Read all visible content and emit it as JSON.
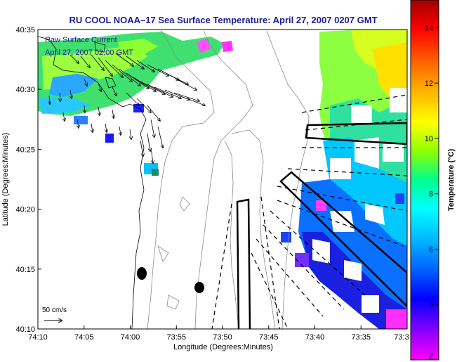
{
  "chart_data": {
    "type": "heatmap",
    "title": "RU COOL  NOAA–17  Sea Surface Temperature:  April 27, 2007 0207 GMT",
    "xlabel": "Longitude (Degrees:Minutes)",
    "ylabel": "Latitude (Degrees:Minutes)",
    "x_ticks": [
      "74:10",
      "74:05",
      "74:00",
      "73:55",
      "73:50",
      "73:45",
      "73:40",
      "73:35",
      "73:3"
    ],
    "y_ticks": [
      "40:35",
      "40:30",
      "40:25",
      "40:20",
      "40:15",
      "40:10"
    ],
    "legend": {
      "line1": "Raw Surface Current",
      "line2": "April 27, 2007 02:00 GMT"
    },
    "vector_scale_label": "50 cm/s",
    "colorbar": {
      "label": "Temperature (°C)",
      "min": 2,
      "max": 15,
      "ticks": [
        "2",
        "4",
        "6",
        "8",
        "10",
        "12",
        "14"
      ],
      "colors": [
        "#ff00ff",
        "#8a00ff",
        "#0000ff",
        "#0060ff",
        "#00b4ff",
        "#00ffff",
        "#00ff90",
        "#8cff00",
        "#ffff00",
        "#ffb000",
        "#ff6000",
        "#ff0000",
        "#a00000"
      ]
    },
    "grid": false
  }
}
